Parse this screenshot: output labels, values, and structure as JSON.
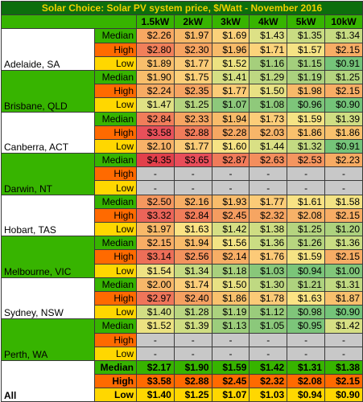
{
  "chart_data": {
    "type": "table",
    "title": "Solar Choice: Solar PV system price, $/Watt - November 2016",
    "columns": [
      "1.5kW",
      "2kW",
      "3kW",
      "4kW",
      "5kW",
      "10kW"
    ],
    "stat_labels": [
      "Median",
      "High",
      "Low"
    ],
    "rows": [
      {
        "city": "Adelaide, SA",
        "band": "white",
        "stats": [
          {
            "label": "Median",
            "values": [
              "$2.26",
              "$1.97",
              "$1.69",
              "$1.43",
              "$1.35",
              "$1.34"
            ],
            "colors": [
              "#f7a862",
              "#f7b969",
              "#fbd17a",
              "#dde186",
              "#c9dc82",
              "#c7db82"
            ]
          },
          {
            "label": "High",
            "values": [
              "$2.80",
              "$2.30",
              "$1.96",
              "$1.71",
              "$1.57",
              "$2.15"
            ],
            "colors": [
              "#f17f5a",
              "#f6a361",
              "#f7ba69",
              "#fcd37b",
              "#f5e384",
              "#f7ad65"
            ]
          },
          {
            "label": "Low",
            "values": [
              "$1.89",
              "$1.77",
              "$1.52",
              "$1.16",
              "$1.15",
              "$0.91"
            ],
            "colors": [
              "#f8be6b",
              "#fbcb77",
              "#ece281",
              "#a5cf7c",
              "#a3cf7c",
              "#75c479"
            ]
          }
        ]
      },
      {
        "city": "Brisbane, QLD",
        "band": "green",
        "stats": [
          {
            "label": "Median",
            "values": [
              "$1.90",
              "$1.75",
              "$1.41",
              "$1.29",
              "$1.19",
              "$1.25"
            ],
            "colors": [
              "#f8be6b",
              "#fcd07a",
              "#d4df84",
              "#bed882",
              "#abd17e",
              "#b5d47f"
            ]
          },
          {
            "label": "High",
            "values": [
              "$2.24",
              "$2.35",
              "$1.77",
              "$1.50",
              "$1.98",
              "$2.15"
            ],
            "colors": [
              "#f7ab63",
              "#f6a462",
              "#fbcb77",
              "#e8e183",
              "#f7b969",
              "#f7ad65"
            ]
          },
          {
            "label": "Low",
            "values": [
              "$1.47",
              "$1.25",
              "$1.07",
              "$1.08",
              "$0.96",
              "$0.90"
            ],
            "colors": [
              "#e0e184",
              "#b5d47f",
              "#8dc87b",
              "#8fc97b",
              "#7dc57a",
              "#74c479"
            ]
          }
        ]
      },
      {
        "city": "Canberra, ACT",
        "band": "white",
        "stats": [
          {
            "label": "Median",
            "values": [
              "$2.84",
              "$2.33",
              "$1.94",
              "$1.73",
              "$1.59",
              "$1.39"
            ],
            "colors": [
              "#f17d5a",
              "#f6a562",
              "#f8bb6a",
              "#fccd79",
              "#f5e384",
              "#d0de83"
            ]
          },
          {
            "label": "High",
            "values": [
              "$3.58",
              "$2.88",
              "$2.28",
              "$2.03",
              "$1.86",
              "$1.86"
            ],
            "colors": [
              "#e8505a",
              "#f07b5a",
              "#f6a762",
              "#f7b569",
              "#f8c16d",
              "#f8c16d"
            ]
          },
          {
            "label": "Low",
            "values": [
              "$2.10",
              "$1.77",
              "$1.60",
              "$1.44",
              "$1.32",
              "$0.91"
            ],
            "colors": [
              "#f7b268",
              "#fbcb77",
              "#f6e384",
              "#d9e085",
              "#c3da82",
              "#75c479"
            ]
          }
        ]
      },
      {
        "city": "Darwin, NT",
        "band": "green",
        "stats": [
          {
            "label": "Median",
            "values": [
              "$4.35",
              "$3.65",
              "$2.87",
              "$2.63",
              "$2.53",
              "$2.23"
            ],
            "colors": [
              "#e2404b",
              "#e84e5a",
              "#f07b5a",
              "#f38e5d",
              "#f4955f",
              "#f7ab63"
            ]
          },
          {
            "label": "High",
            "values": [
              "-",
              "-",
              "-",
              "-",
              "-",
              "-"
            ],
            "colors": [
              "#c8c8c8",
              "#c8c8c8",
              "#c8c8c8",
              "#c8c8c8",
              "#c8c8c8",
              "#c8c8c8"
            ]
          },
          {
            "label": "Low",
            "values": [
              "-",
              "-",
              "-",
              "-",
              "-",
              "-"
            ],
            "colors": [
              "#c8c8c8",
              "#c8c8c8",
              "#c8c8c8",
              "#c8c8c8",
              "#c8c8c8",
              "#c8c8c8"
            ]
          }
        ]
      },
      {
        "city": "Hobart, TAS",
        "band": "white",
        "stats": [
          {
            "label": "Median",
            "values": [
              "$2.50",
              "$2.16",
              "$1.93",
              "$1.77",
              "$1.61",
              "$1.58"
            ],
            "colors": [
              "#f4975f",
              "#f7ae65",
              "#f8bc6b",
              "#fbcb77",
              "#f8e284",
              "#f3e384"
            ]
          },
          {
            "label": "High",
            "values": [
              "$3.32",
              "$2.84",
              "$2.45",
              "$2.32",
              "$2.08",
              "$2.15"
            ],
            "colors": [
              "#eb6459",
              "#f17d5a",
              "#f59c60",
              "#f6a562",
              "#f7b268",
              "#f7ad65"
            ]
          },
          {
            "label": "Low",
            "values": [
              "$1.97",
              "$1.63",
              "$1.42",
              "$1.38",
              "$1.25",
              "$1.20"
            ],
            "colors": [
              "#f8b969",
              "#fbe384",
              "#d6df84",
              "#cedd83",
              "#b5d47f",
              "#add27e"
            ]
          }
        ]
      },
      {
        "city": "Melbourne, VIC",
        "band": "green",
        "stats": [
          {
            "label": "Median",
            "values": [
              "$2.15",
              "$1.94",
              "$1.56",
              "$1.36",
              "$1.26",
              "$1.36"
            ],
            "colors": [
              "#f7ad65",
              "#f8bb6a",
              "#f3e384",
              "#cadd83",
              "#b7d57f",
              "#cadd83"
            ]
          },
          {
            "label": "High",
            "values": [
              "$3.14",
              "$2.56",
              "$2.14",
              "$1.76",
              "$1.59",
              "$2.15"
            ],
            "colors": [
              "#ed6e58",
              "#f4935e",
              "#f7ae65",
              "#fcca78",
              "#f5e384",
              "#f7ad65"
            ]
          },
          {
            "label": "Low",
            "values": [
              "$1.54",
              "$1.34",
              "$1.18",
              "$1.03",
              "$0.94",
              "$1.00"
            ],
            "colors": [
              "#efe283",
              "#c7db82",
              "#a8d07d",
              "#88c77a",
              "#7ac579",
              "#82c67a"
            ]
          }
        ]
      },
      {
        "city": "Sydney, NSW",
        "band": "white",
        "stats": [
          {
            "label": "Median",
            "values": [
              "$2.00",
              "$1.74",
              "$1.50",
              "$1.30",
              "$1.21",
              "$1.31"
            ],
            "colors": [
              "#f7b769",
              "#fcce7a",
              "#e8e183",
              "#bfd982",
              "#aed27e",
              "#c1d982"
            ]
          },
          {
            "label": "High",
            "values": [
              "$2.97",
              "$2.40",
              "$1.86",
              "$1.78",
              "$1.63",
              "$1.87"
            ],
            "colors": [
              "#ef755a",
              "#f5a061",
              "#f8c16d",
              "#fbca77",
              "#fbe384",
              "#f8c06d"
            ]
          },
          {
            "label": "Low",
            "values": [
              "$1.40",
              "$1.28",
              "$1.19",
              "$1.12",
              "$0.98",
              "$0.90"
            ],
            "colors": [
              "#d2de84",
              "#bad681",
              "#abd17e",
              "#9acc7c",
              "#80c57a",
              "#74c479"
            ]
          }
        ]
      },
      {
        "city": "Perth, WA",
        "band": "green",
        "stats": [
          {
            "label": "Median",
            "values": [
              "$1.52",
              "$1.39",
              "$1.13",
              "$1.05",
              "$0.95",
              "$1.42"
            ],
            "colors": [
              "#ece281",
              "#d0de83",
              "#9ccd7c",
              "#8bc87b",
              "#7cc57a",
              "#d6df84"
            ]
          },
          {
            "label": "High",
            "values": [
              "-",
              "-",
              "-",
              "-",
              "-",
              "-"
            ],
            "colors": [
              "#c8c8c8",
              "#c8c8c8",
              "#c8c8c8",
              "#c8c8c8",
              "#c8c8c8",
              "#c8c8c8"
            ]
          },
          {
            "label": "Low",
            "values": [
              "-",
              "-",
              "-",
              "-",
              "-",
              "-"
            ],
            "colors": [
              "#c8c8c8",
              "#c8c8c8",
              "#c8c8c8",
              "#c8c8c8",
              "#c8c8c8",
              "#c8c8c8"
            ]
          }
        ]
      },
      {
        "city": "All",
        "band": "white",
        "summary": true,
        "stats": [
          {
            "label": "Median",
            "values": [
              "$2.17",
              "$1.90",
              "$1.59",
              "$1.42",
              "$1.31",
              "$1.38"
            ],
            "colors": [
              "#37b400",
              "#37b400",
              "#37b400",
              "#37b400",
              "#37b400",
              "#37b400"
            ]
          },
          {
            "label": "High",
            "values": [
              "$3.58",
              "$2.88",
              "$2.45",
              "$2.32",
              "$2.08",
              "$2.15"
            ],
            "colors": [
              "#ff6a00",
              "#ff6a00",
              "#ff6a00",
              "#ff6a00",
              "#ff6a00",
              "#ff6a00"
            ]
          },
          {
            "label": "Low",
            "values": [
              "$1.40",
              "$1.25",
              "$1.07",
              "$1.03",
              "$0.94",
              "$0.90"
            ],
            "colors": [
              "#ffd700",
              "#ffd700",
              "#ffd700",
              "#ffd700",
              "#ffd700",
              "#ffd700"
            ]
          }
        ]
      }
    ]
  }
}
